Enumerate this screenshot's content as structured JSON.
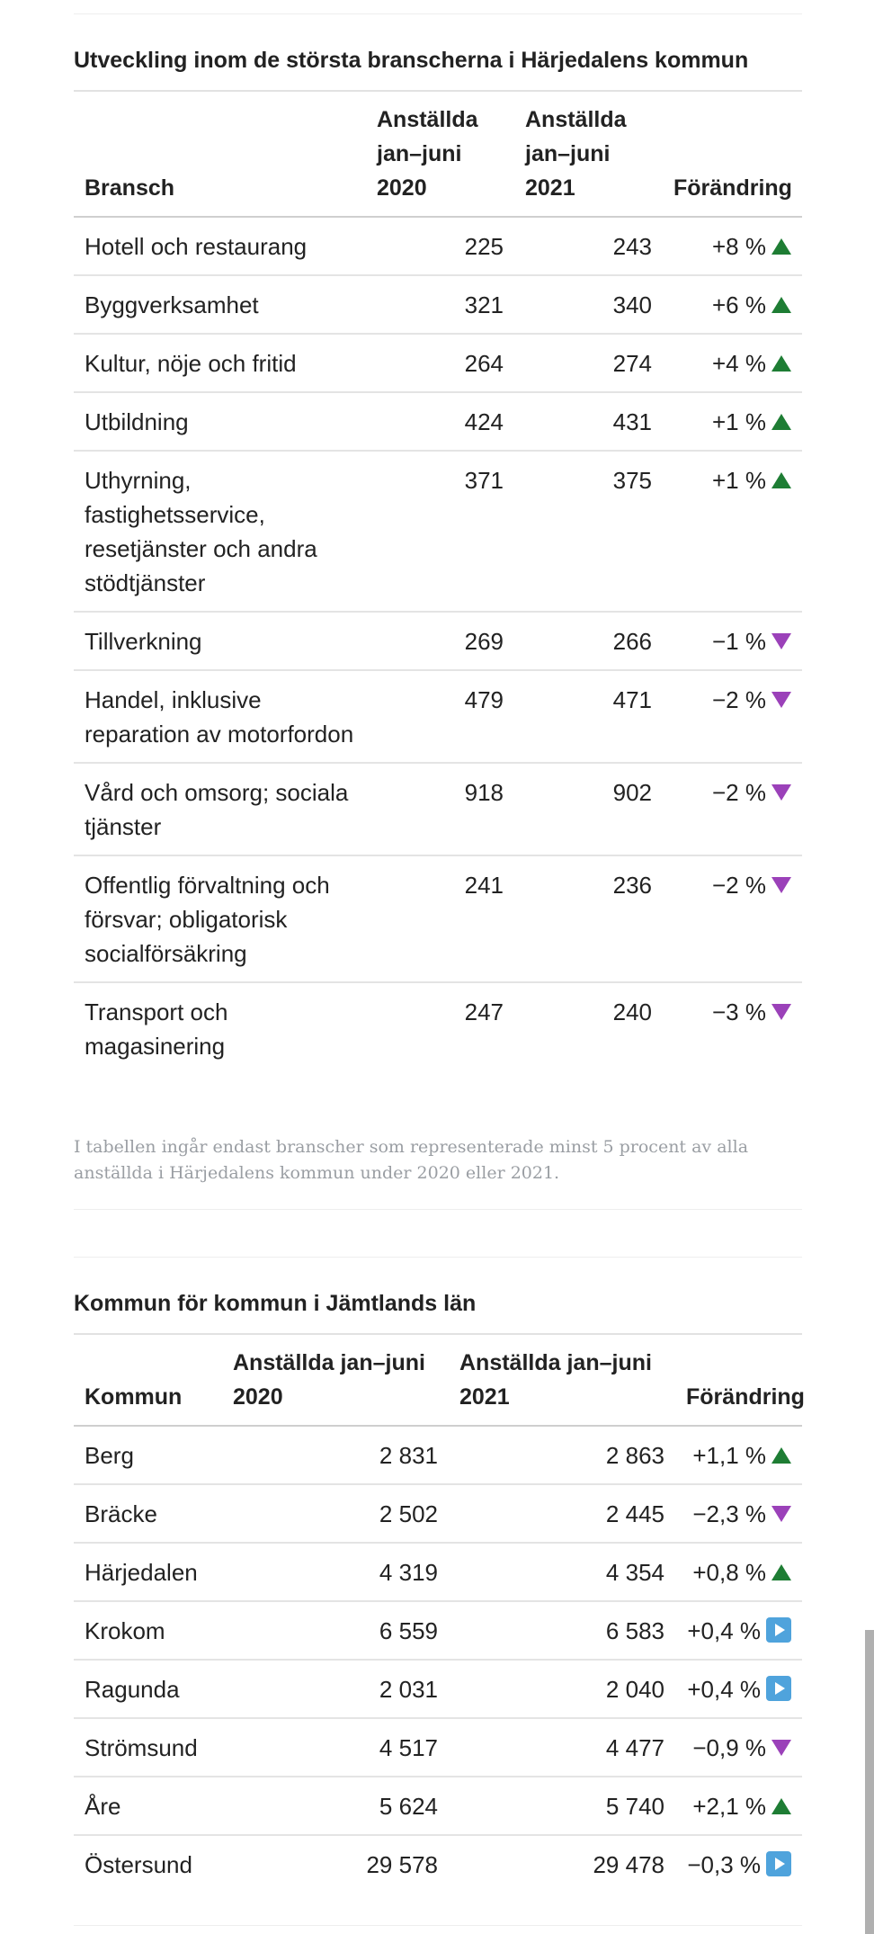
{
  "table1": {
    "title": "Utveckling inom de största branscherna i Härjedalens kommun",
    "headers": {
      "col1": "Bransch",
      "col2": "Anställda jan–juni 2020",
      "col3": "Anställda jan–juni 2021",
      "col4": "Förändring"
    },
    "rows": [
      {
        "name": "Hotell och restaurang",
        "v2020": "225",
        "v2021": "243",
        "change": "+8 %",
        "direction": "up"
      },
      {
        "name": "Byggverksamhet",
        "v2020": "321",
        "v2021": "340",
        "change": "+6 %",
        "direction": "up"
      },
      {
        "name": "Kultur, nöje och fritid",
        "v2020": "264",
        "v2021": "274",
        "change": "+4 %",
        "direction": "up"
      },
      {
        "name": "Utbildning",
        "v2020": "424",
        "v2021": "431",
        "change": "+1 %",
        "direction": "up"
      },
      {
        "name": "Uthyrning, fastighetsservice, resetjänster och andra stödtjänster",
        "v2020": "371",
        "v2021": "375",
        "change": "+1 %",
        "direction": "up"
      },
      {
        "name": "Tillverkning",
        "v2020": "269",
        "v2021": "266",
        "change": "−1 %",
        "direction": "down"
      },
      {
        "name": "Handel, inklusive reparation av motorfordon",
        "v2020": "479",
        "v2021": "471",
        "change": "−2 %",
        "direction": "down"
      },
      {
        "name": "Vård och omsorg; sociala tjänster",
        "v2020": "918",
        "v2021": "902",
        "change": "−2 %",
        "direction": "down"
      },
      {
        "name": "Offentlig förvaltning och försvar; obligatorisk socialförsäkring",
        "v2020": "241",
        "v2021": "236",
        "change": "−2 %",
        "direction": "down"
      },
      {
        "name": "Transport och magasinering",
        "v2020": "247",
        "v2021": "240",
        "change": "−3 %",
        "direction": "down"
      }
    ],
    "note": "I tabellen ingår endast branscher som representerade minst 5 procent av alla anställda i Härjedalens kommun under 2020 eller 2021."
  },
  "table2": {
    "title": "Kommun för kommun i Jämtlands län",
    "headers": {
      "col1": "Kommun",
      "col2": "Anställda jan–juni 2020",
      "col3": "Anställda jan–juni 2021",
      "col4": "Förändring"
    },
    "rows": [
      {
        "name": "Berg",
        "v2020": "2 831",
        "v2021": "2 863",
        "change": "+1,1 %",
        "direction": "up"
      },
      {
        "name": "Bräcke",
        "v2020": "2 502",
        "v2021": "2 445",
        "change": "−2,3 %",
        "direction": "down"
      },
      {
        "name": "Härjedalen",
        "v2020": "4 319",
        "v2021": "4 354",
        "change": "+0,8 %",
        "direction": "up"
      },
      {
        "name": "Krokom",
        "v2020": "6 559",
        "v2021": "6 583",
        "change": "+0,4 %",
        "direction": "flat"
      },
      {
        "name": "Ragunda",
        "v2020": "2 031",
        "v2021": "2 040",
        "change": "+0,4 %",
        "direction": "flat"
      },
      {
        "name": "Strömsund",
        "v2020": "4 517",
        "v2021": "4 477",
        "change": "−0,9 %",
        "direction": "down"
      },
      {
        "name": "Åre",
        "v2020": "5 624",
        "v2021": "5 740",
        "change": "+2,1 %",
        "direction": "up"
      },
      {
        "name": "Östersund",
        "v2020": "29 578",
        "v2021": "29 478",
        "change": "−0,3 %",
        "direction": "flat"
      }
    ]
  },
  "colors": {
    "up": "#1e7d34",
    "down": "#9b41b9",
    "flat": "#4fa3dc"
  },
  "icons": {
    "up": "triangle-up-icon",
    "down": "triangle-down-icon",
    "flat": "arrow-right-square-icon"
  }
}
